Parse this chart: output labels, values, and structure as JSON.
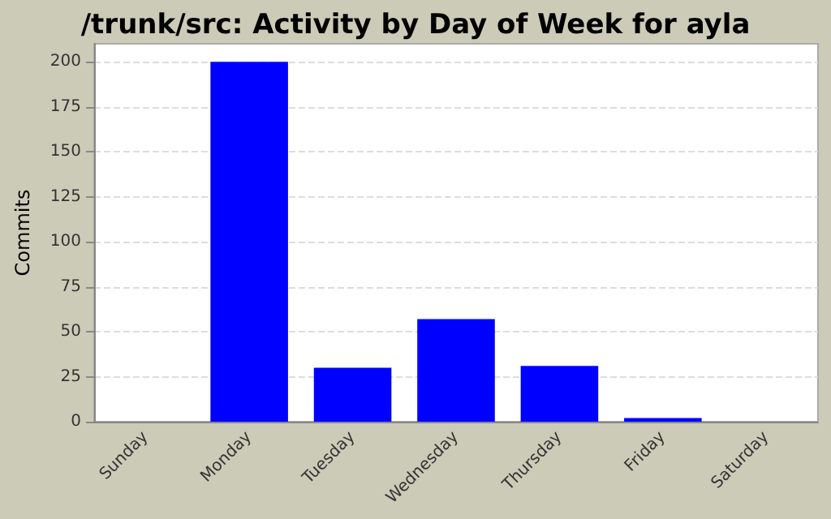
{
  "chart_data": {
    "type": "bar",
    "title": "/trunk/src: Activity by Day of Week for ayla",
    "ylabel": "Commits",
    "categories": [
      "Sunday",
      "Monday",
      "Tuesday",
      "Wednesday",
      "Thursday",
      "Friday",
      "Saturday"
    ],
    "values": [
      0,
      200,
      30,
      57,
      31,
      2,
      0
    ],
    "color": "#0000ff",
    "ylim": [
      0,
      210
    ],
    "yticks": [
      0,
      25,
      50,
      75,
      100,
      125,
      150,
      175,
      200
    ],
    "grid": "y"
  }
}
